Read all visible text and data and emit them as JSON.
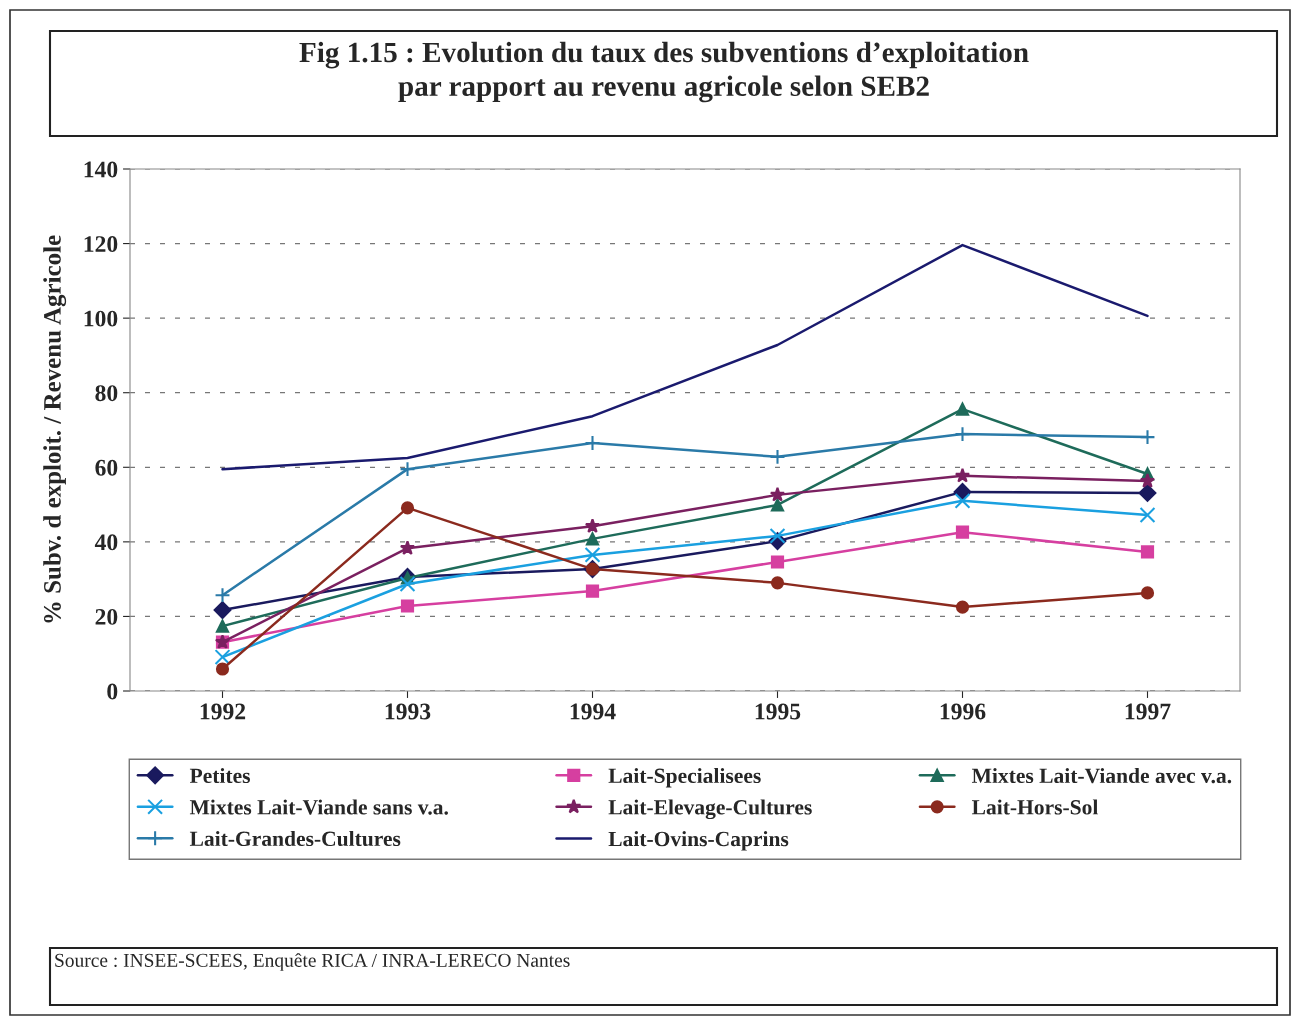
{
  "chart_data": {
    "type": "line",
    "title": "Fig 1.15 : Evolution du taux des subventions d’exploitation\npar rapport au revenu agricole selon SEB2",
    "ylabel": "% Subv. d exploit. / Revenu Agricole",
    "categories": [
      "1992",
      "1993",
      "1994",
      "1995",
      "1996",
      "1997"
    ],
    "ylim": [
      0,
      140
    ],
    "yticks": [
      0,
      20,
      40,
      60,
      80,
      100,
      120,
      140
    ],
    "grid": "y",
    "legend": "bottom",
    "annotations": [
      "Source : INSEE-SCEES, Enquête RICA / INRA-LERECO Nantes"
    ],
    "series": [
      {
        "name": "Petites",
        "color": "#1a1a5e",
        "marker": "diamond",
        "values": [
          21.7,
          30.6,
          32.7,
          40.2,
          53.4,
          53.1
        ]
      },
      {
        "name": "Lait-Specialisees",
        "color": "#d63fa0",
        "marker": "square",
        "values": [
          13.1,
          22.8,
          26.8,
          34.6,
          42.6,
          37.3
        ]
      },
      {
        "name": "Mixtes Lait-Viande avec v.a.",
        "color": "#1e6b5a",
        "marker": "triangle",
        "values": [
          17.4,
          30.3,
          40.8,
          49.9,
          75.6,
          58.2
        ]
      },
      {
        "name": "Mixtes Lait-Viande sans v.a.",
        "color": "#1aa0e0",
        "marker": "cross",
        "values": [
          9.1,
          28.7,
          36.5,
          41.6,
          51.0,
          47.2
        ]
      },
      {
        "name": "Lait-Elevage-Cultures",
        "color": "#7a2060",
        "marker": "star",
        "values": [
          13.1,
          38.3,
          44.2,
          52.6,
          57.7,
          56.3
        ]
      },
      {
        "name": "Lait-Hors-Sol",
        "color": "#8b2a1e",
        "marker": "circle",
        "values": [
          5.9,
          49.1,
          32.7,
          29.0,
          22.5,
          26.3
        ]
      },
      {
        "name": "Lait-Grandes-Cultures",
        "color": "#2a7aa8",
        "marker": "plus",
        "values": [
          25.7,
          59.5,
          66.5,
          62.8,
          68.9,
          68.1
        ]
      },
      {
        "name": "Lait-Ovins-Caprins",
        "color": "#1a1a6e",
        "marker": "none",
        "values": [
          59.5,
          62.5,
          73.7,
          92.8,
          119.6,
          100.6
        ]
      }
    ]
  }
}
